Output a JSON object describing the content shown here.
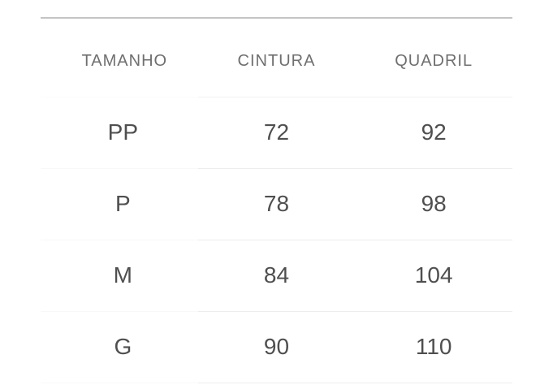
{
  "table": {
    "title": "size-measurement-chart",
    "headers": [
      "TAMANHO",
      "CINTURA",
      "QUADRIL"
    ],
    "rows": [
      [
        "PP",
        "72",
        "92"
      ],
      [
        "P",
        "78",
        "98"
      ],
      [
        "M",
        "84",
        "104"
      ],
      [
        "G",
        "90",
        "110"
      ]
    ]
  },
  "colors": {
    "background": "#ffffff",
    "table_top_rule": "#c4c4c4",
    "row_divider": "#ededed",
    "row_divider_first_col": "#f8f8f8",
    "header_text": "#6f6f6f",
    "cell_text": "#4f4f4f"
  }
}
